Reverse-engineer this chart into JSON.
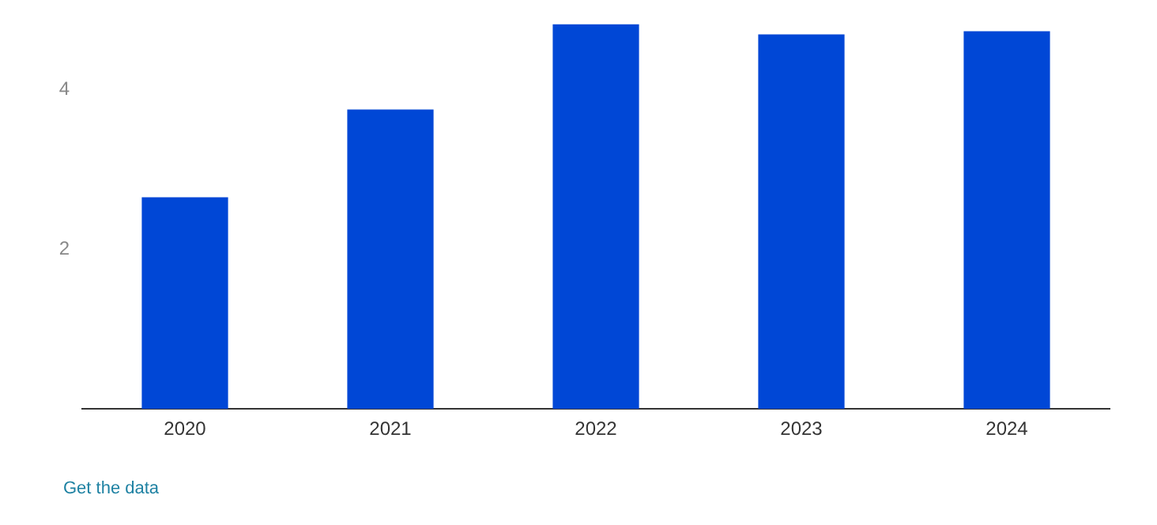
{
  "chart_data": {
    "type": "bar",
    "categories": [
      "2020",
      "2021",
      "2022",
      "2023",
      "2024"
    ],
    "values": [
      2.65,
      3.75,
      4.82,
      4.69,
      4.73
    ],
    "color": "#0047d6",
    "ylim": [
      0,
      4.82
    ],
    "yticks": [
      2,
      4
    ],
    "grid": false,
    "legend": false,
    "annotations": [
      "Get the data"
    ]
  }
}
